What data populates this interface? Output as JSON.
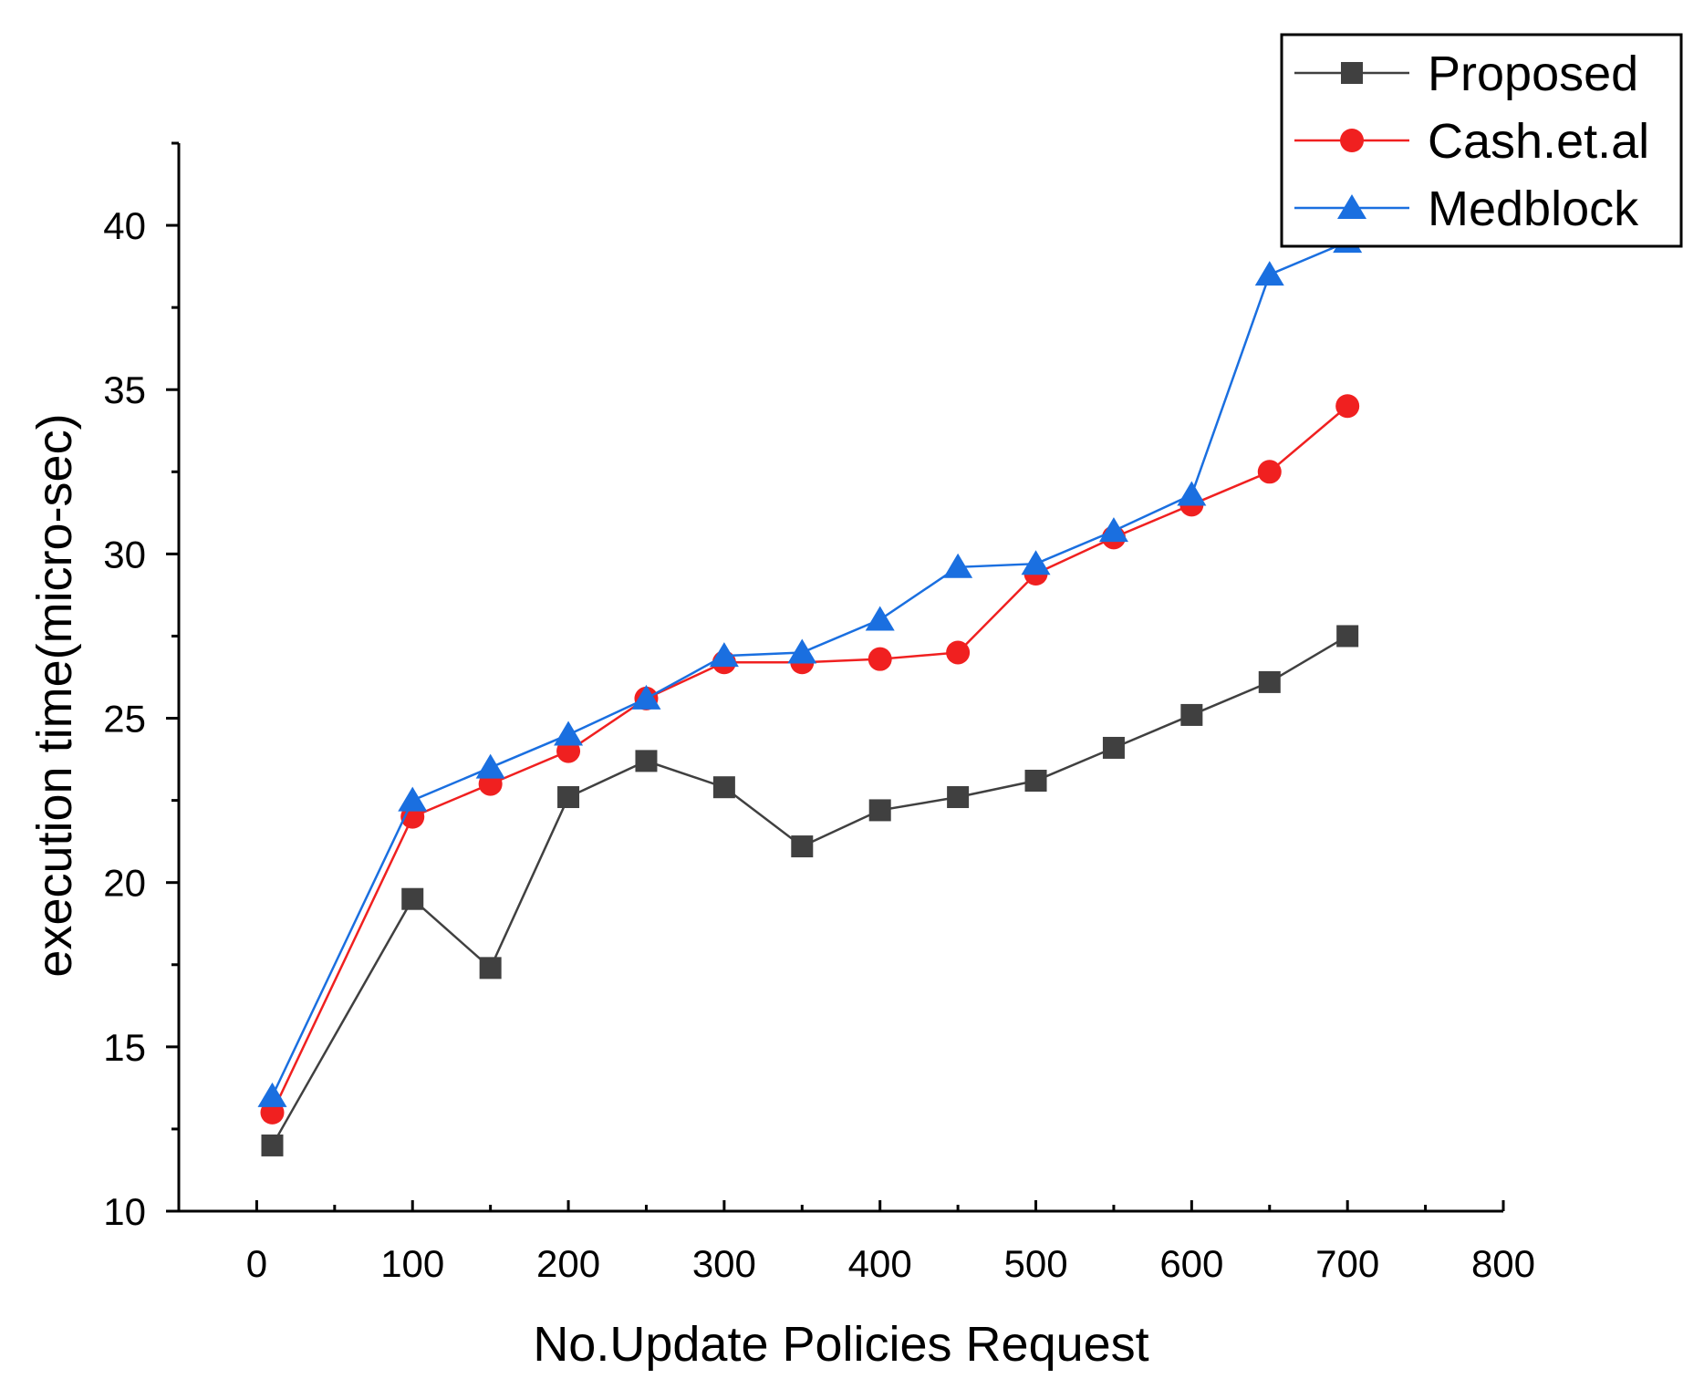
{
  "chart_data": {
    "type": "line",
    "title": "",
    "xlabel": "No.Update Policies Request",
    "ylabel": "execution time(micro-sec)",
    "xlim": [
      -50,
      800
    ],
    "ylim": [
      10,
      42.5
    ],
    "xticks": [
      0,
      100,
      200,
      300,
      400,
      500,
      600,
      700,
      800
    ],
    "yticks": [
      10,
      15,
      20,
      25,
      30,
      35,
      40
    ],
    "xtick_labels": [
      "0",
      "100",
      "200",
      "300",
      "400",
      "500",
      "600",
      "700",
      "800"
    ],
    "ytick_labels": [
      "10",
      "15",
      "20",
      "25",
      "30",
      "35",
      "40"
    ],
    "x": [
      10,
      100,
      150,
      200,
      250,
      300,
      350,
      400,
      450,
      500,
      550,
      600,
      650,
      700
    ],
    "legend_position": "top-right",
    "series": [
      {
        "name": "Proposed",
        "color": "#404040",
        "marker": "square",
        "values": [
          12.0,
          19.5,
          17.4,
          22.6,
          23.7,
          22.9,
          21.1,
          22.2,
          22.6,
          23.1,
          24.1,
          25.1,
          26.1,
          27.5
        ]
      },
      {
        "name": "Cash.et.al",
        "color": "#f02020",
        "marker": "circle",
        "values": [
          13.0,
          22.0,
          23.0,
          24.0,
          25.6,
          26.7,
          26.7,
          26.8,
          27.0,
          29.4,
          30.5,
          31.5,
          32.5,
          34.5
        ]
      },
      {
        "name": "Medblock",
        "color": "#1a6fe0",
        "marker": "triangle",
        "values": [
          13.5,
          22.5,
          23.5,
          24.5,
          25.6,
          26.9,
          27.0,
          28.0,
          29.6,
          29.7,
          30.7,
          31.8,
          38.5,
          39.5
        ]
      }
    ]
  }
}
